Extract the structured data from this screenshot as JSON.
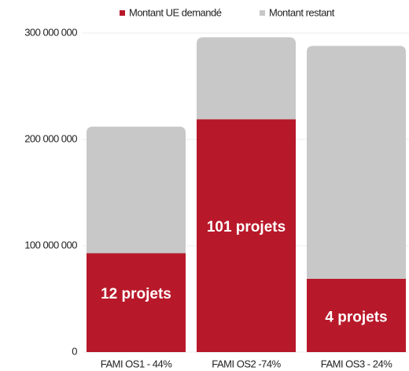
{
  "chart_data": {
    "type": "stacked-bar",
    "categories": [
      "FAMI OS1 - 44%",
      "FAMI OS2 -74%",
      "FAMI OS3 - 24%"
    ],
    "series": [
      {
        "name": "Montant UE demandé",
        "color": "#b8192a",
        "values": [
          93000000,
          219000000,
          69000000
        ]
      },
      {
        "name": "Montant restant",
        "color": "#c8c8c8",
        "values": [
          119000000,
          77000000,
          219000000
        ]
      }
    ],
    "bar_labels": [
      "12 projets",
      "101 projets",
      "4 projets"
    ],
    "ylim": [
      0,
      300000000
    ],
    "yticks": [
      0,
      {
        "value": 100000000,
        "label": "100 000 000"
      },
      {
        "value": 200000000,
        "label": "200 000 000"
      },
      {
        "value": 300000000,
        "label": "300 000 000"
      }
    ],
    "grid": true,
    "legend": "top"
  }
}
